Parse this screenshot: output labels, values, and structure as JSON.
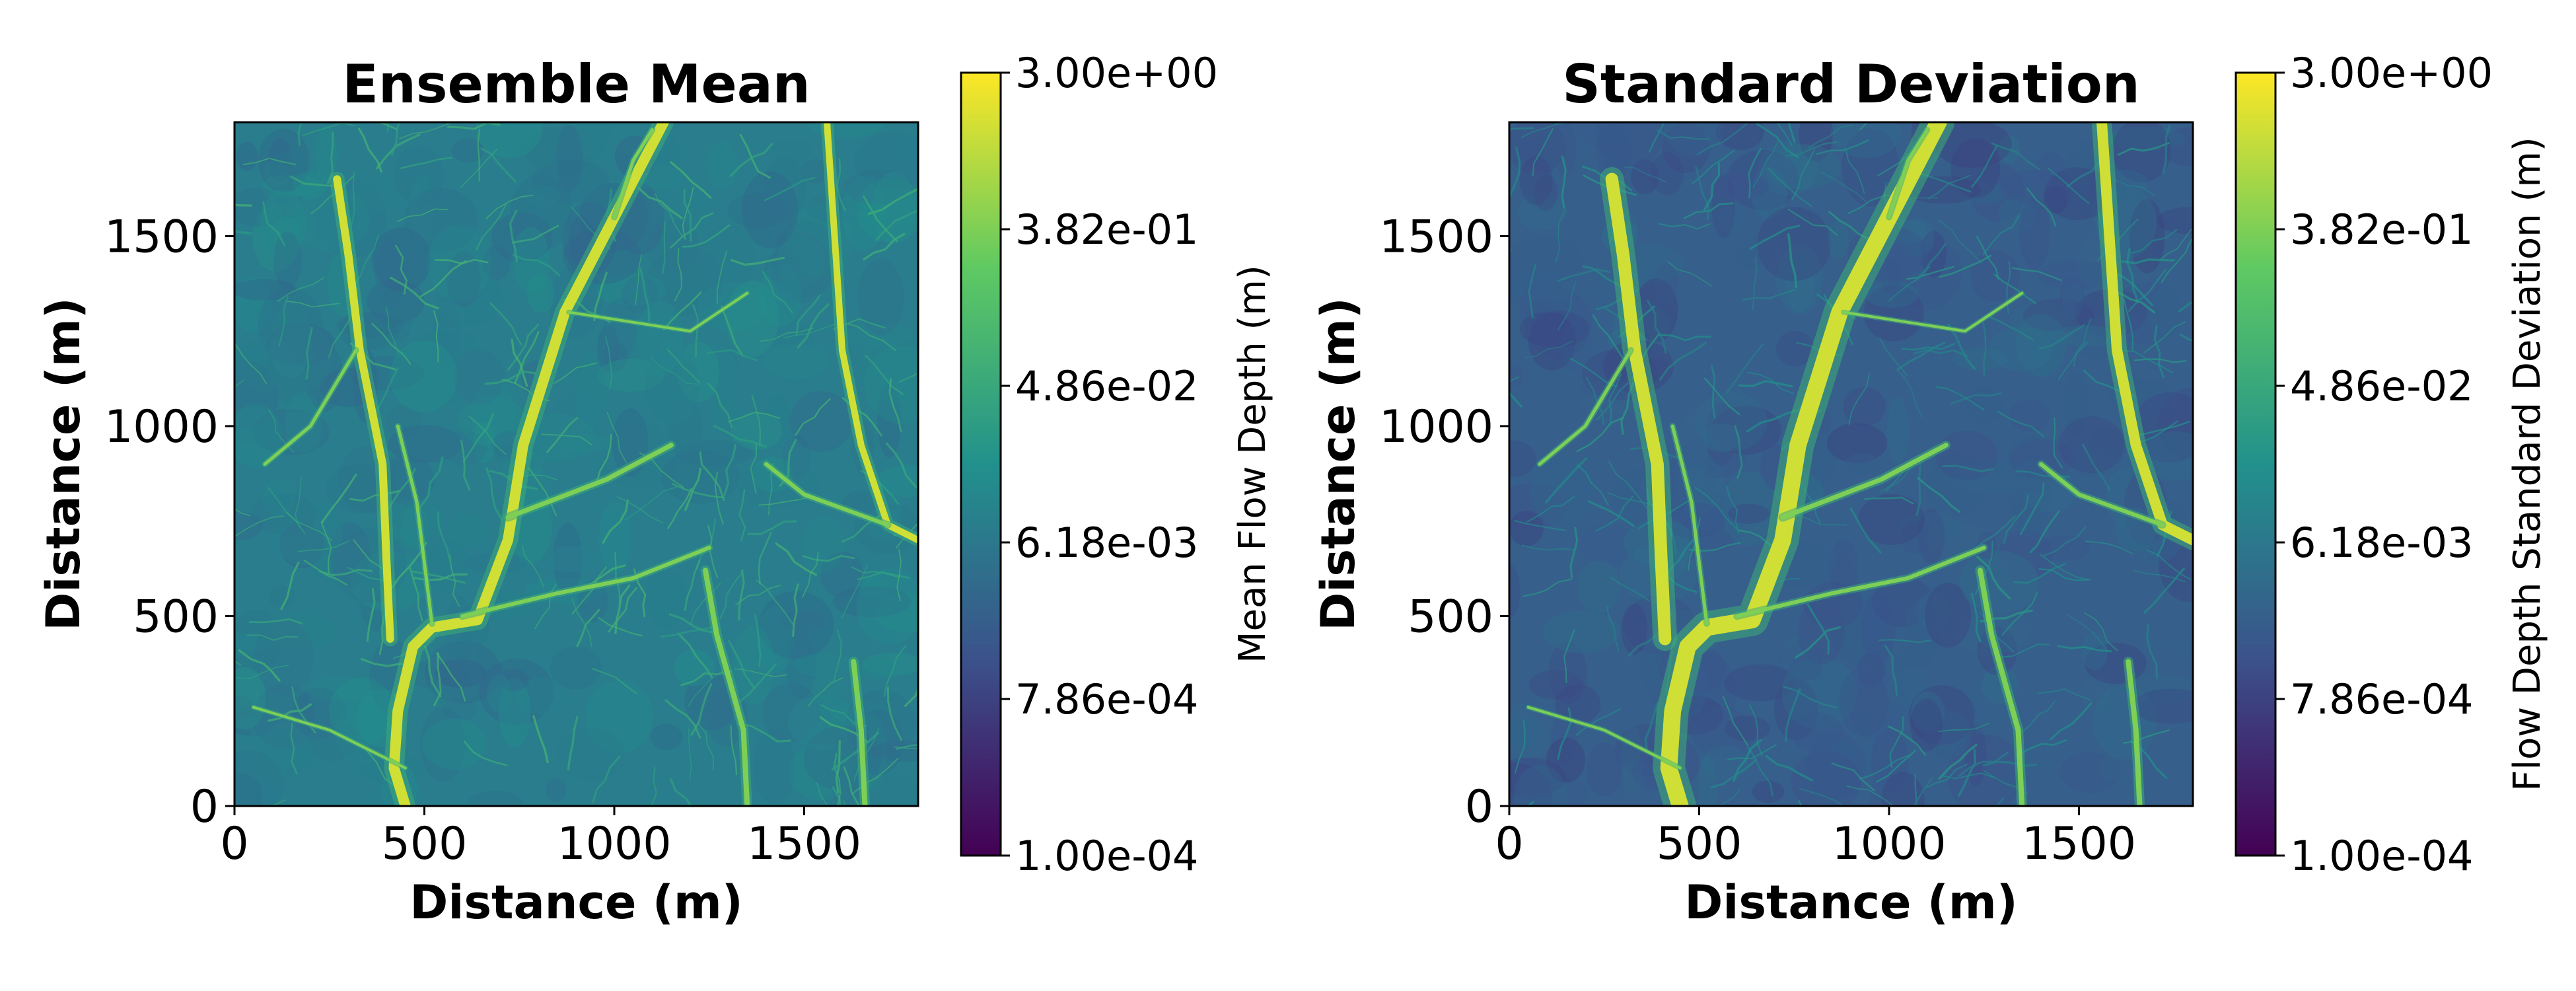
{
  "colors": {
    "viridis_stops": [
      "#440154",
      "#3b528b",
      "#21918c",
      "#5ec962",
      "#fde725"
    ]
  },
  "chart_data": [
    {
      "type": "heatmap",
      "title": "Ensemble Mean",
      "xlabel": "Distance (m)",
      "ylabel": "Distance (m)",
      "xlim": [
        0,
        1800
      ],
      "ylim": [
        0,
        1800
      ],
      "xticks": [
        0,
        500,
        1000,
        1500
      ],
      "yticks": [
        0,
        500,
        1000,
        1500
      ],
      "xtick_labels": [
        "0",
        "500",
        "1000",
        "1500"
      ],
      "ytick_labels": [
        "0",
        "500",
        "1000",
        "1500"
      ],
      "colormap": "viridis",
      "color_scale": "log",
      "colorbar": {
        "label": "Mean Flow Depth (m)",
        "ticks": [
          "1.00e-04",
          "7.86e-04",
          "6.18e-03",
          "4.86e-02",
          "3.82e-01",
          "3.00e+00"
        ]
      },
      "background_level": 0.42
    },
    {
      "type": "heatmap",
      "title": "Standard Deviation",
      "xlabel": "Distance (m)",
      "ylabel": "Distance (m)",
      "xlim": [
        0,
        1800
      ],
      "ylim": [
        0,
        1800
      ],
      "xticks": [
        0,
        500,
        1000,
        1500
      ],
      "yticks": [
        0,
        500,
        1000,
        1500
      ],
      "xtick_labels": [
        "0",
        "500",
        "1000",
        "1500"
      ],
      "ytick_labels": [
        "0",
        "500",
        "1000",
        "1500"
      ],
      "colormap": "viridis",
      "color_scale": "log",
      "colorbar": {
        "label": "Flow Depth Standard Deviation (m)",
        "ticks": [
          "1.00e-04",
          "7.86e-04",
          "6.18e-03",
          "4.86e-02",
          "3.82e-01",
          "3.00e+00"
        ]
      },
      "background_level": 0.3
    }
  ]
}
